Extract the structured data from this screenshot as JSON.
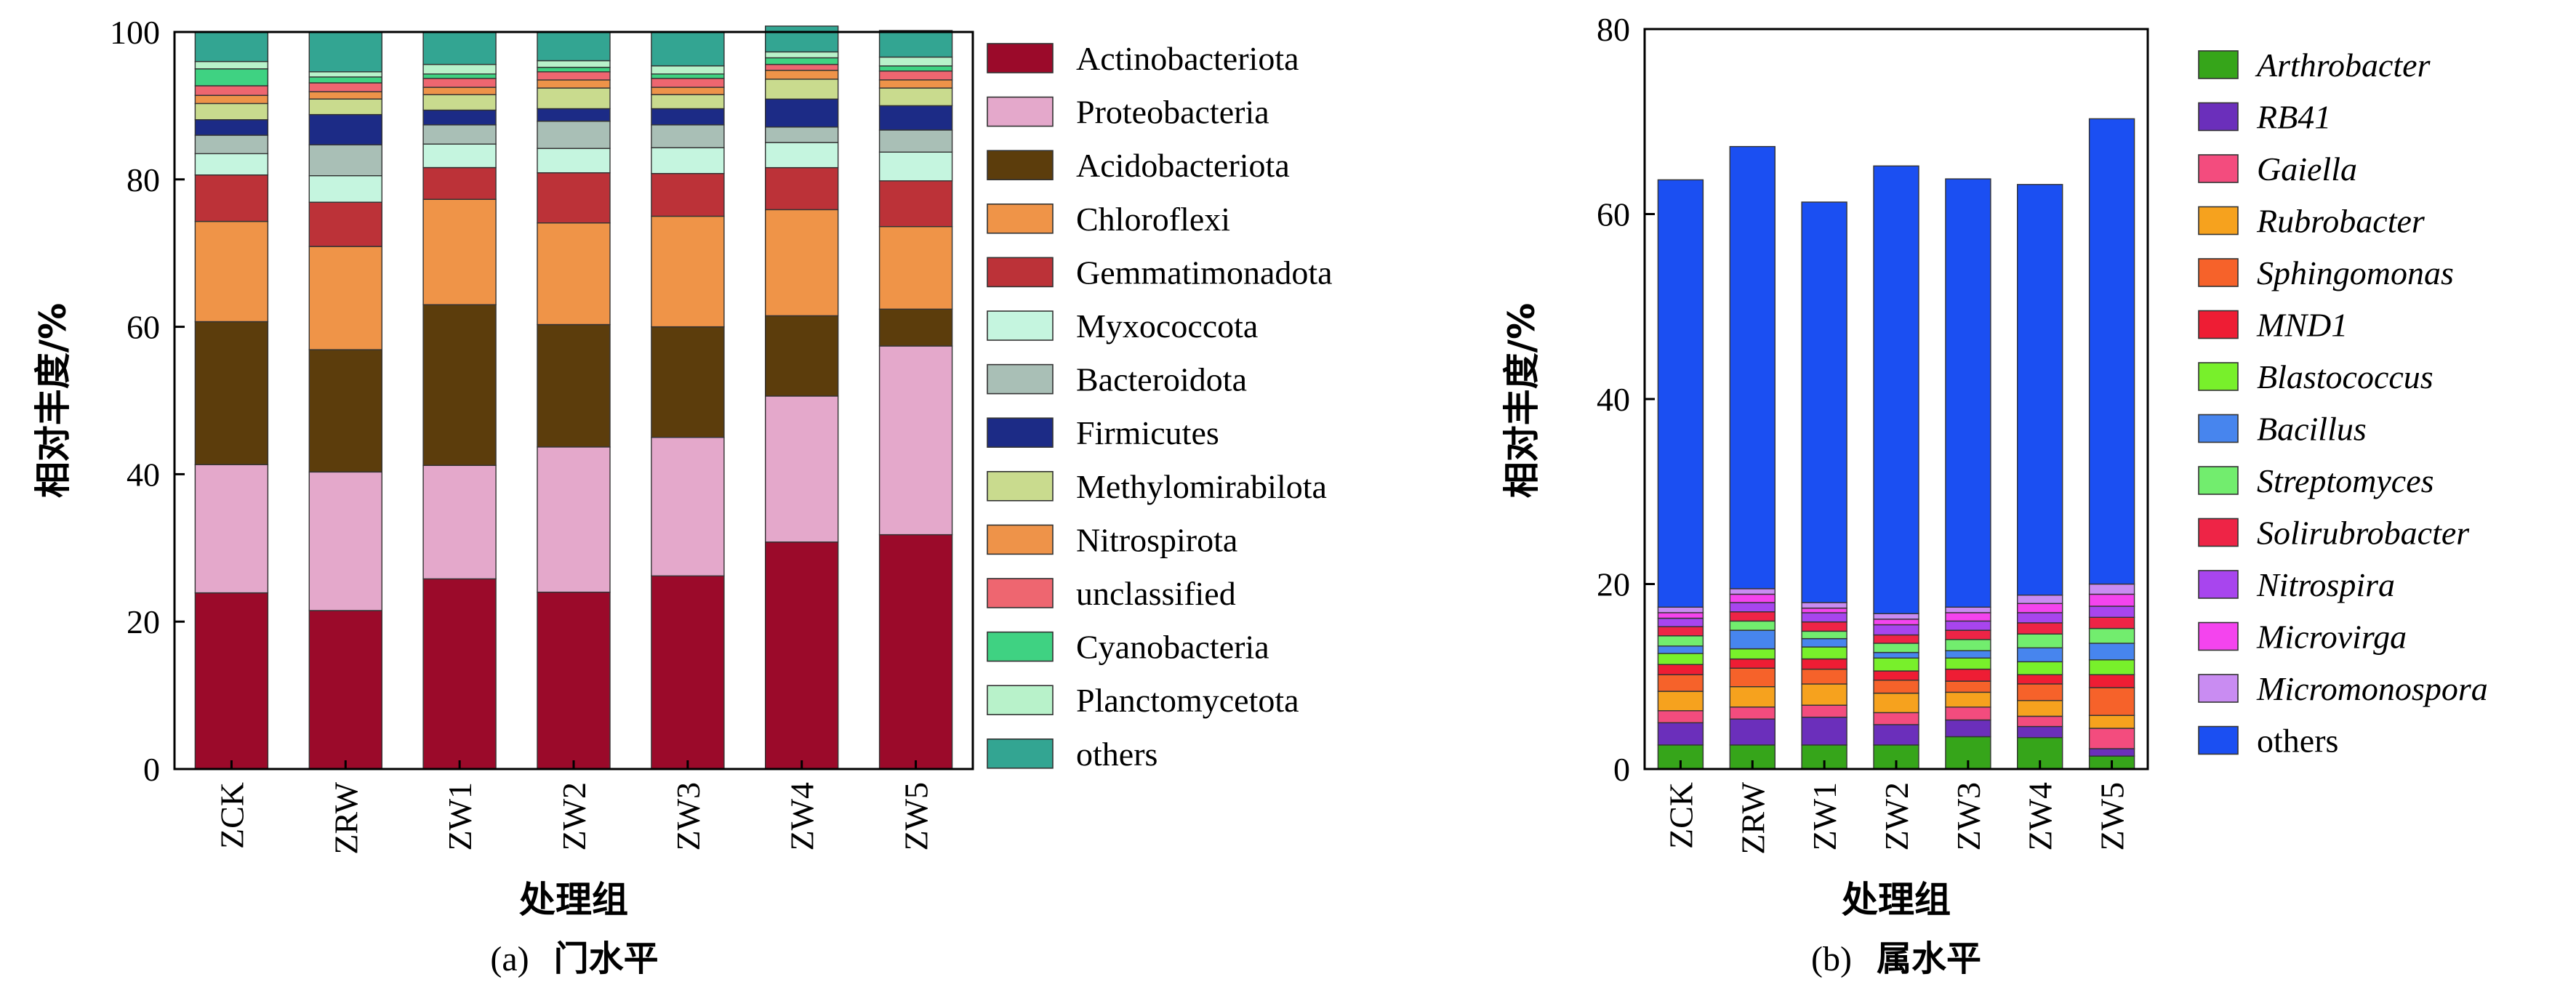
{
  "chart_data": [
    {
      "type": "bar",
      "stacked": true,
      "caption_prefix": "(a)",
      "caption_text": "门水平",
      "xlabel": "处理组",
      "ylabel": "相对丰度/%",
      "ylim": [
        0,
        100
      ],
      "yticks": [
        0,
        20,
        40,
        60,
        80,
        100
      ],
      "legend_position": "right",
      "legend_italic": false,
      "categories": [
        "ZCK",
        "ZRW",
        "ZW1",
        "ZW2",
        "ZW3",
        "ZW4",
        "ZW5"
      ],
      "series": [
        {
          "name": "Actinobacteriota",
          "color": "#9b0a2a",
          "values": [
            23.9,
            21.5,
            25.8,
            24.0,
            26.2,
            30.8,
            31.8
          ]
        },
        {
          "name": "Proteobacteria",
          "color": "#e4a8cb",
          "values": [
            17.4,
            18.8,
            15.4,
            19.7,
            18.8,
            19.8,
            25.6
          ]
        },
        {
          "name": "Acidobacteriota",
          "color": "#5c3d0c",
          "values": [
            19.4,
            16.6,
            21.8,
            16.6,
            15.0,
            10.9,
            5.0
          ]
        },
        {
          "name": "Chloroflexi",
          "color": "#ef9448",
          "values": [
            13.6,
            14.0,
            14.3,
            13.8,
            15.0,
            14.4,
            11.2
          ]
        },
        {
          "name": "Gemmatimonadota",
          "color": "#bc3238",
          "values": [
            6.3,
            6.0,
            4.3,
            6.8,
            5.8,
            5.7,
            6.2
          ]
        },
        {
          "name": "Myxococcota",
          "color": "#c5f5df",
          "values": [
            2.9,
            3.6,
            3.2,
            3.3,
            3.5,
            3.4,
            3.9
          ]
        },
        {
          "name": "Bacteroidota",
          "color": "#a9bfb6",
          "values": [
            2.5,
            4.2,
            2.6,
            3.7,
            3.1,
            2.1,
            3.0
          ]
        },
        {
          "name": "Firmicutes",
          "color": "#1c2b86",
          "values": [
            2.1,
            4.1,
            2.0,
            1.7,
            2.2,
            3.8,
            3.3
          ]
        },
        {
          "name": "Methylomirabilota",
          "color": "#c9db8e",
          "values": [
            2.2,
            2.1,
            2.1,
            2.8,
            1.9,
            2.7,
            2.4
          ]
        },
        {
          "name": "Nitrospirota",
          "color": "#ee9349",
          "values": [
            1.1,
            1.0,
            1.0,
            1.1,
            1.0,
            1.2,
            1.1
          ]
        },
        {
          "name": "unclassified",
          "color": "#ee6670",
          "values": [
            1.3,
            1.2,
            1.2,
            1.1,
            1.2,
            0.8,
            1.2
          ]
        },
        {
          "name": "Cyanobacteria",
          "color": "#3fd282",
          "values": [
            2.3,
            0.8,
            0.6,
            0.6,
            0.6,
            0.9,
            0.7
          ]
        },
        {
          "name": "Planctomycetota",
          "color": "#b8f2ca",
          "values": [
            1.0,
            0.7,
            1.3,
            0.9,
            1.1,
            0.8,
            1.2
          ]
        },
        {
          "name": "others",
          "color": "#33a592",
          "values": [
            4.0,
            5.4,
            4.4,
            3.9,
            4.6,
            3.5,
            3.6
          ]
        }
      ]
    },
    {
      "type": "bar",
      "stacked": true,
      "caption_prefix": "(b)",
      "caption_text": "属水平",
      "xlabel": "处理组",
      "ylabel": "相对丰度/%",
      "ylim": [
        0,
        80
      ],
      "yticks": [
        0,
        20,
        40,
        60,
        80
      ],
      "legend_position": "right",
      "legend_italic": true,
      "categories": [
        "ZCK",
        "ZRW",
        "ZW1",
        "ZW2",
        "ZW3",
        "ZW4",
        "ZW5"
      ],
      "series": [
        {
          "name": "Arthrobacter",
          "color": "#36a51a",
          "values": [
            2.6,
            2.6,
            2.6,
            2.6,
            3.5,
            3.4,
            1.4
          ]
        },
        {
          "name": "RB41",
          "color": "#6b2fbb",
          "values": [
            2.4,
            2.8,
            3.0,
            2.2,
            1.8,
            1.2,
            0.8
          ]
        },
        {
          "name": "Gaiella",
          "color": "#f34c7e",
          "values": [
            1.3,
            1.3,
            1.3,
            1.3,
            1.4,
            1.1,
            2.2
          ]
        },
        {
          "name": "Rubrobacter",
          "color": "#f6a21e",
          "values": [
            2.1,
            2.2,
            2.3,
            2.1,
            1.6,
            1.7,
            1.4
          ]
        },
        {
          "name": "Sphingomonas",
          "color": "#f6622a",
          "values": [
            1.8,
            2.0,
            1.6,
            1.4,
            1.2,
            1.8,
            3.0
          ]
        },
        {
          "name": "MND1",
          "color": "#ee1d34",
          "values": [
            1.1,
            1.0,
            1.1,
            1.0,
            1.3,
            1.0,
            1.4
          ]
        },
        {
          "name": "Blastococcus",
          "color": "#78f02b",
          "values": [
            1.2,
            1.1,
            1.3,
            1.4,
            1.2,
            1.4,
            1.6
          ]
        },
        {
          "name": "Bacillus",
          "color": "#4785ee",
          "values": [
            0.8,
            2.0,
            0.9,
            0.6,
            0.8,
            1.5,
            1.8
          ]
        },
        {
          "name": "Streptomyces",
          "color": "#72ed6e",
          "values": [
            1.1,
            1.0,
            0.8,
            1.0,
            1.2,
            1.5,
            1.6
          ]
        },
        {
          "name": "Solirubrobacter",
          "color": "#ee2446",
          "values": [
            1.0,
            1.0,
            1.0,
            0.9,
            1.0,
            1.2,
            1.2
          ]
        },
        {
          "name": "Nitrospira",
          "color": "#a845ee",
          "values": [
            0.9,
            1.0,
            1.0,
            1.1,
            1.0,
            1.1,
            1.2
          ]
        },
        {
          "name": "Microvirga",
          "color": "#f444ee",
          "values": [
            0.6,
            0.9,
            0.5,
            0.6,
            0.9,
            1.0,
            1.3
          ]
        },
        {
          "name": "Micromonospora",
          "color": "#c98cf2",
          "values": [
            0.6,
            0.6,
            0.6,
            0.6,
            0.6,
            0.9,
            1.1
          ]
        },
        {
          "name": "others",
          "color": "#1b4ff2",
          "values": [
            46.2,
            47.8,
            43.3,
            48.4,
            46.3,
            44.4,
            50.3
          ]
        }
      ]
    }
  ]
}
